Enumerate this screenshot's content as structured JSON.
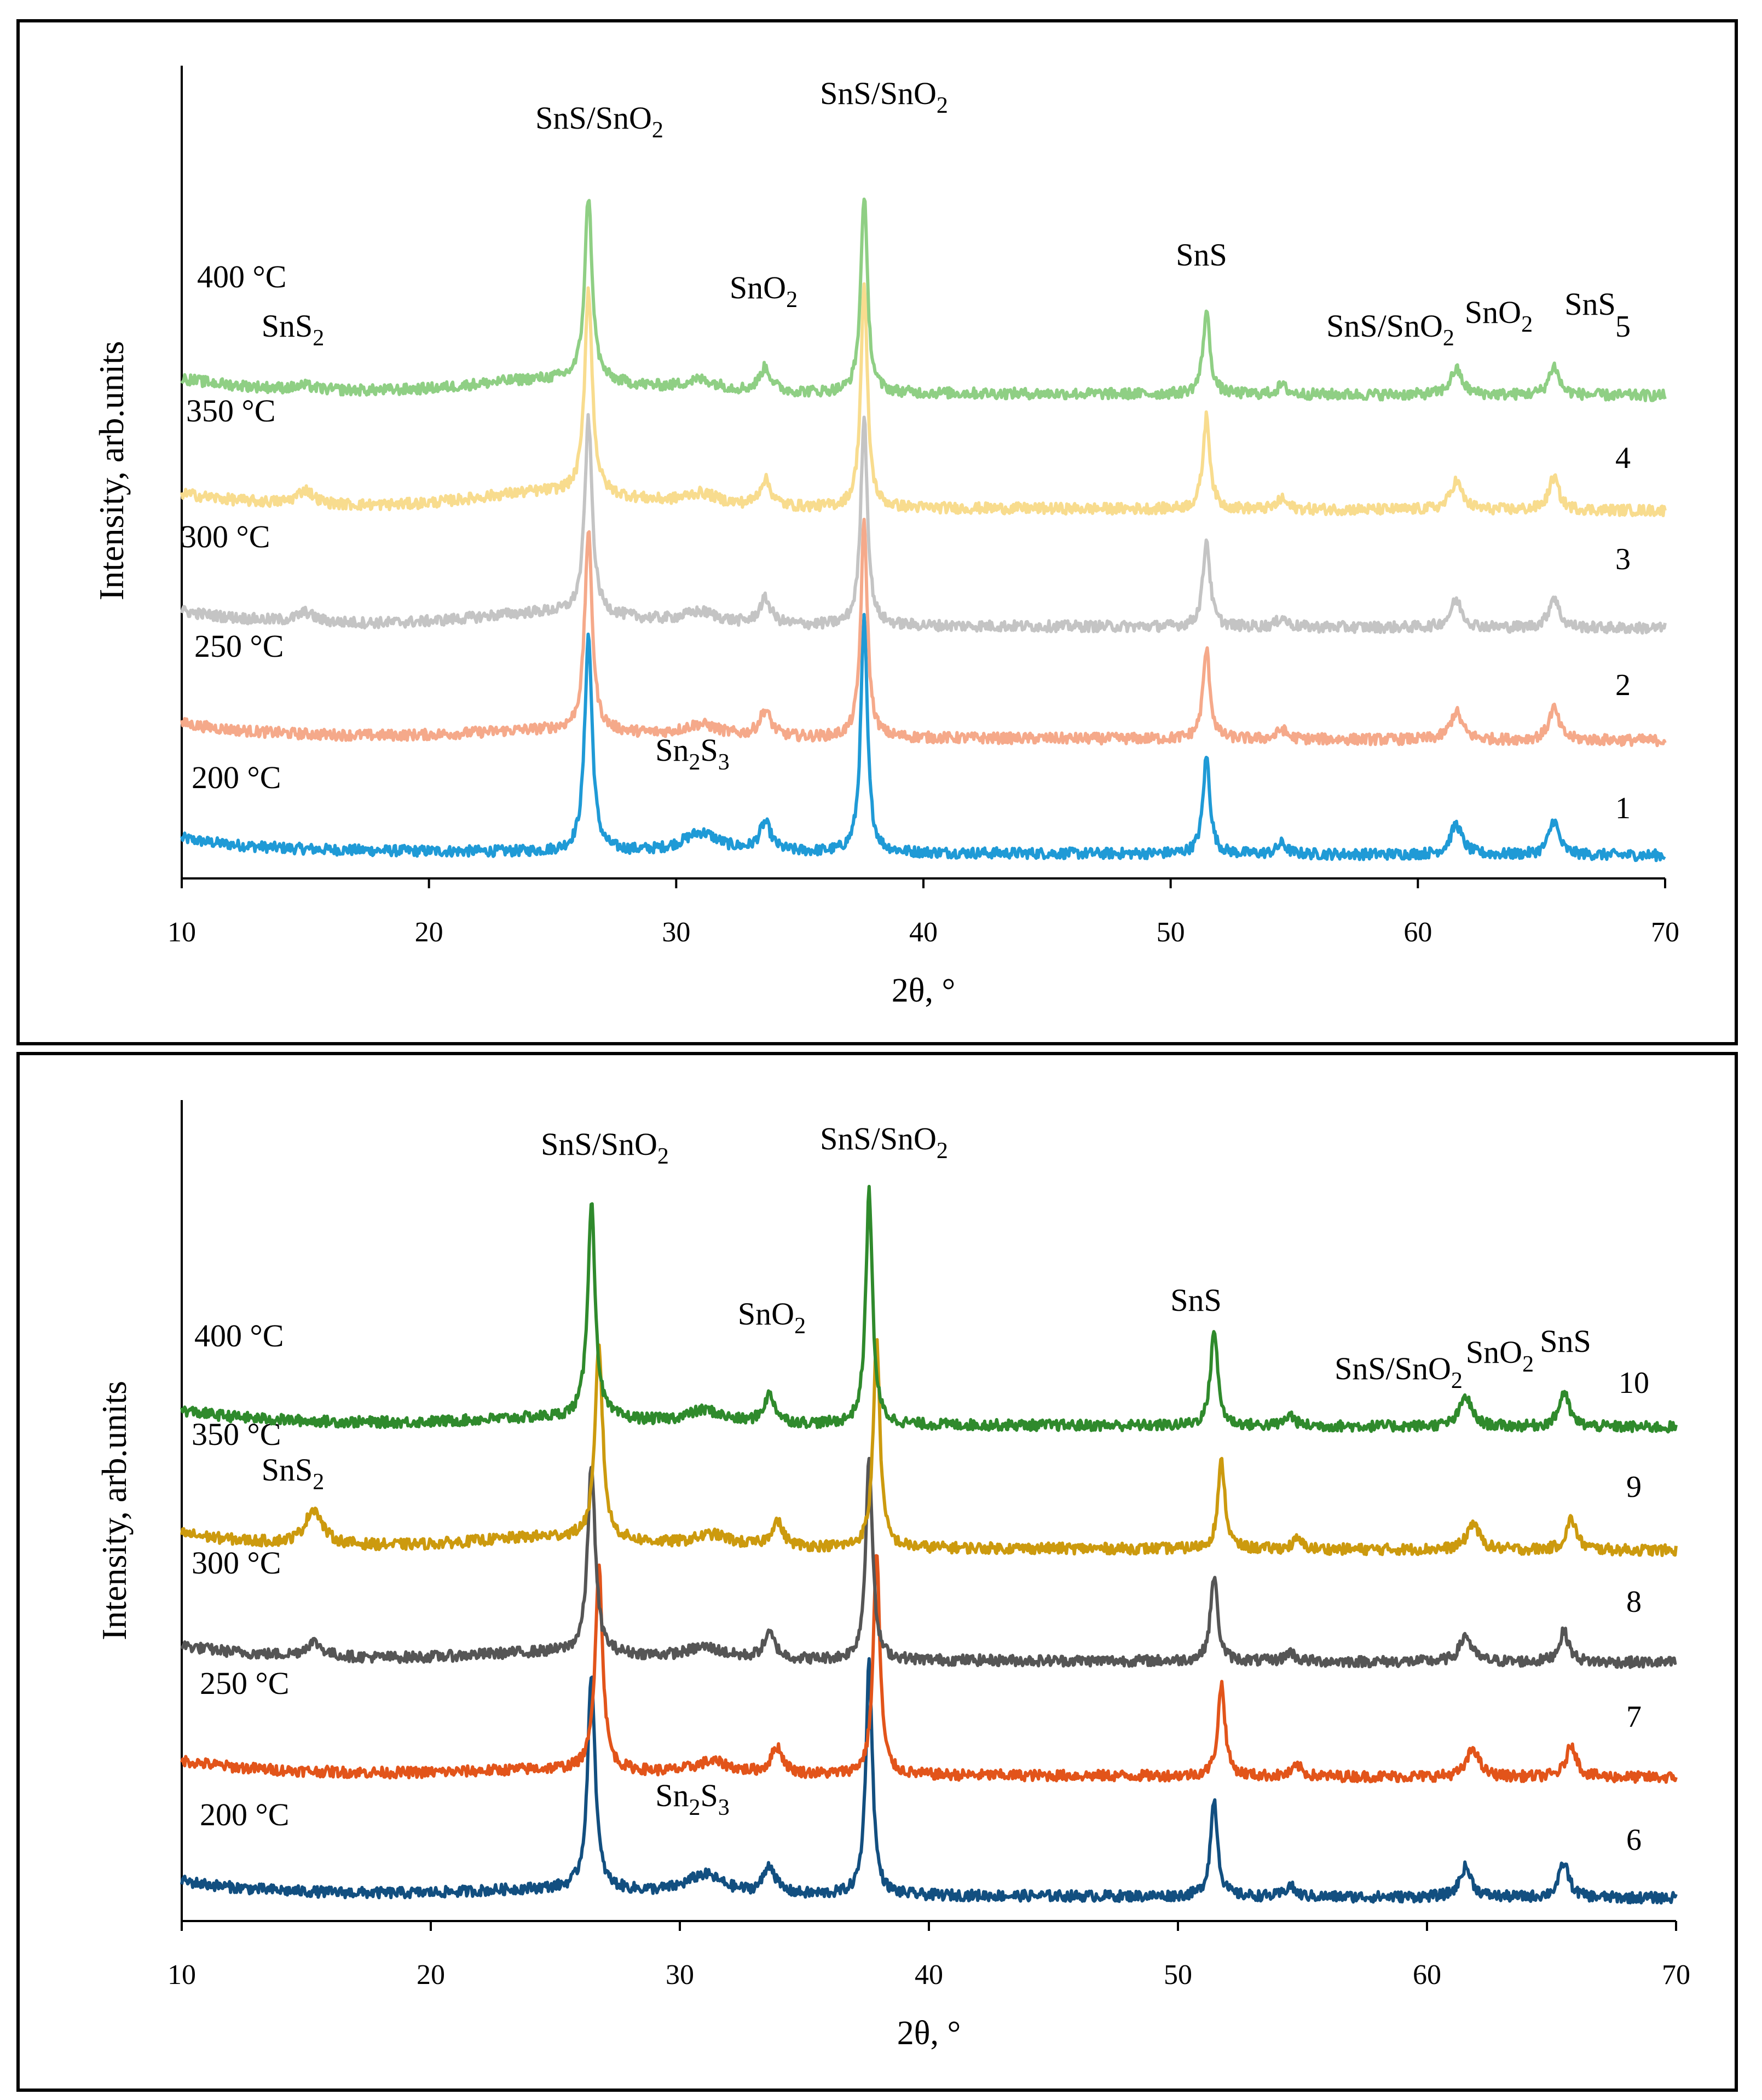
{
  "chart_data": [
    {
      "type": "line",
      "title": "",
      "xlabel": "2θ, °",
      "ylabel": "Intensity, arb.units",
      "xlim": [
        10,
        70
      ],
      "xticks": [
        "10",
        "20",
        "30",
        "40",
        "50",
        "60",
        "70"
      ],
      "grid": false,
      "series": [
        {
          "name": "1",
          "temperature": "200 °C",
          "color": "#1f9ad6"
        },
        {
          "name": "2",
          "temperature": "250 °C",
          "color": "#f5a98a"
        },
        {
          "name": "3",
          "temperature": "300 °C",
          "color": "#c4c4c4"
        },
        {
          "name": "4",
          "temperature": "350 °C",
          "color": "#f8dc8e"
        },
        {
          "name": "5",
          "temperature": "400 °C",
          "color": "#8fcf84"
        }
      ],
      "peaks": [
        {
          "x": 15.0,
          "label": "SnS",
          "sub": "2"
        },
        {
          "x": 26.5,
          "label": "SnS/SnO",
          "sub": "2"
        },
        {
          "x": 31.0,
          "label": "Sn",
          "sub": "2",
          "label2": "S",
          "sub2": "3"
        },
        {
          "x": 33.8,
          "label": "SnO",
          "sub": "2"
        },
        {
          "x": 37.7,
          "label": "SnS/SnO",
          "sub": "2"
        },
        {
          "x": 51.5,
          "label": "SnS",
          "sub": ""
        },
        {
          "x": 54.6,
          "label": "SnS/SnO",
          "sub": "2"
        },
        {
          "x": 61.7,
          "label": "SnO",
          "sub": "2"
        },
        {
          "x": 65.6,
          "label": "SnS",
          "sub": ""
        }
      ]
    },
    {
      "type": "line",
      "title": "",
      "xlabel": "2θ, °",
      "ylabel": "Intensity, arb.units",
      "xlim": [
        10,
        70
      ],
      "xticks": [
        "10",
        "20",
        "30",
        "40",
        "50",
        "60",
        "70"
      ],
      "grid": false,
      "series": [
        {
          "name": "6",
          "temperature": "200 °C",
          "color": "#124f80"
        },
        {
          "name": "7",
          "temperature": "250 °C",
          "color": "#e2541a"
        },
        {
          "name": "8",
          "temperature": "300 °C",
          "color": "#555555"
        },
        {
          "name": "9",
          "temperature": "350 °C",
          "color": "#cc9a0e"
        },
        {
          "name": "10",
          "temperature": "400 °C",
          "color": "#2f8a2c"
        }
      ],
      "peaks": [
        {
          "x": 15.0,
          "label": "SnS",
          "sub": "2"
        },
        {
          "x": 26.5,
          "label": "SnS/SnO",
          "sub": "2"
        },
        {
          "x": 31.0,
          "label": "Sn",
          "sub": "2",
          "label2": "S",
          "sub2": "3"
        },
        {
          "x": 33.8,
          "label": "SnO",
          "sub": "2"
        },
        {
          "x": 37.7,
          "label": "SnS/SnO",
          "sub": "2"
        },
        {
          "x": 51.5,
          "label": "SnS",
          "sub": ""
        },
        {
          "x": 54.6,
          "label": "SnS/SnO",
          "sub": "2"
        },
        {
          "x": 61.7,
          "label": "SnO",
          "sub": "2"
        },
        {
          "x": 65.6,
          "label": "SnS",
          "sub": ""
        }
      ]
    }
  ]
}
